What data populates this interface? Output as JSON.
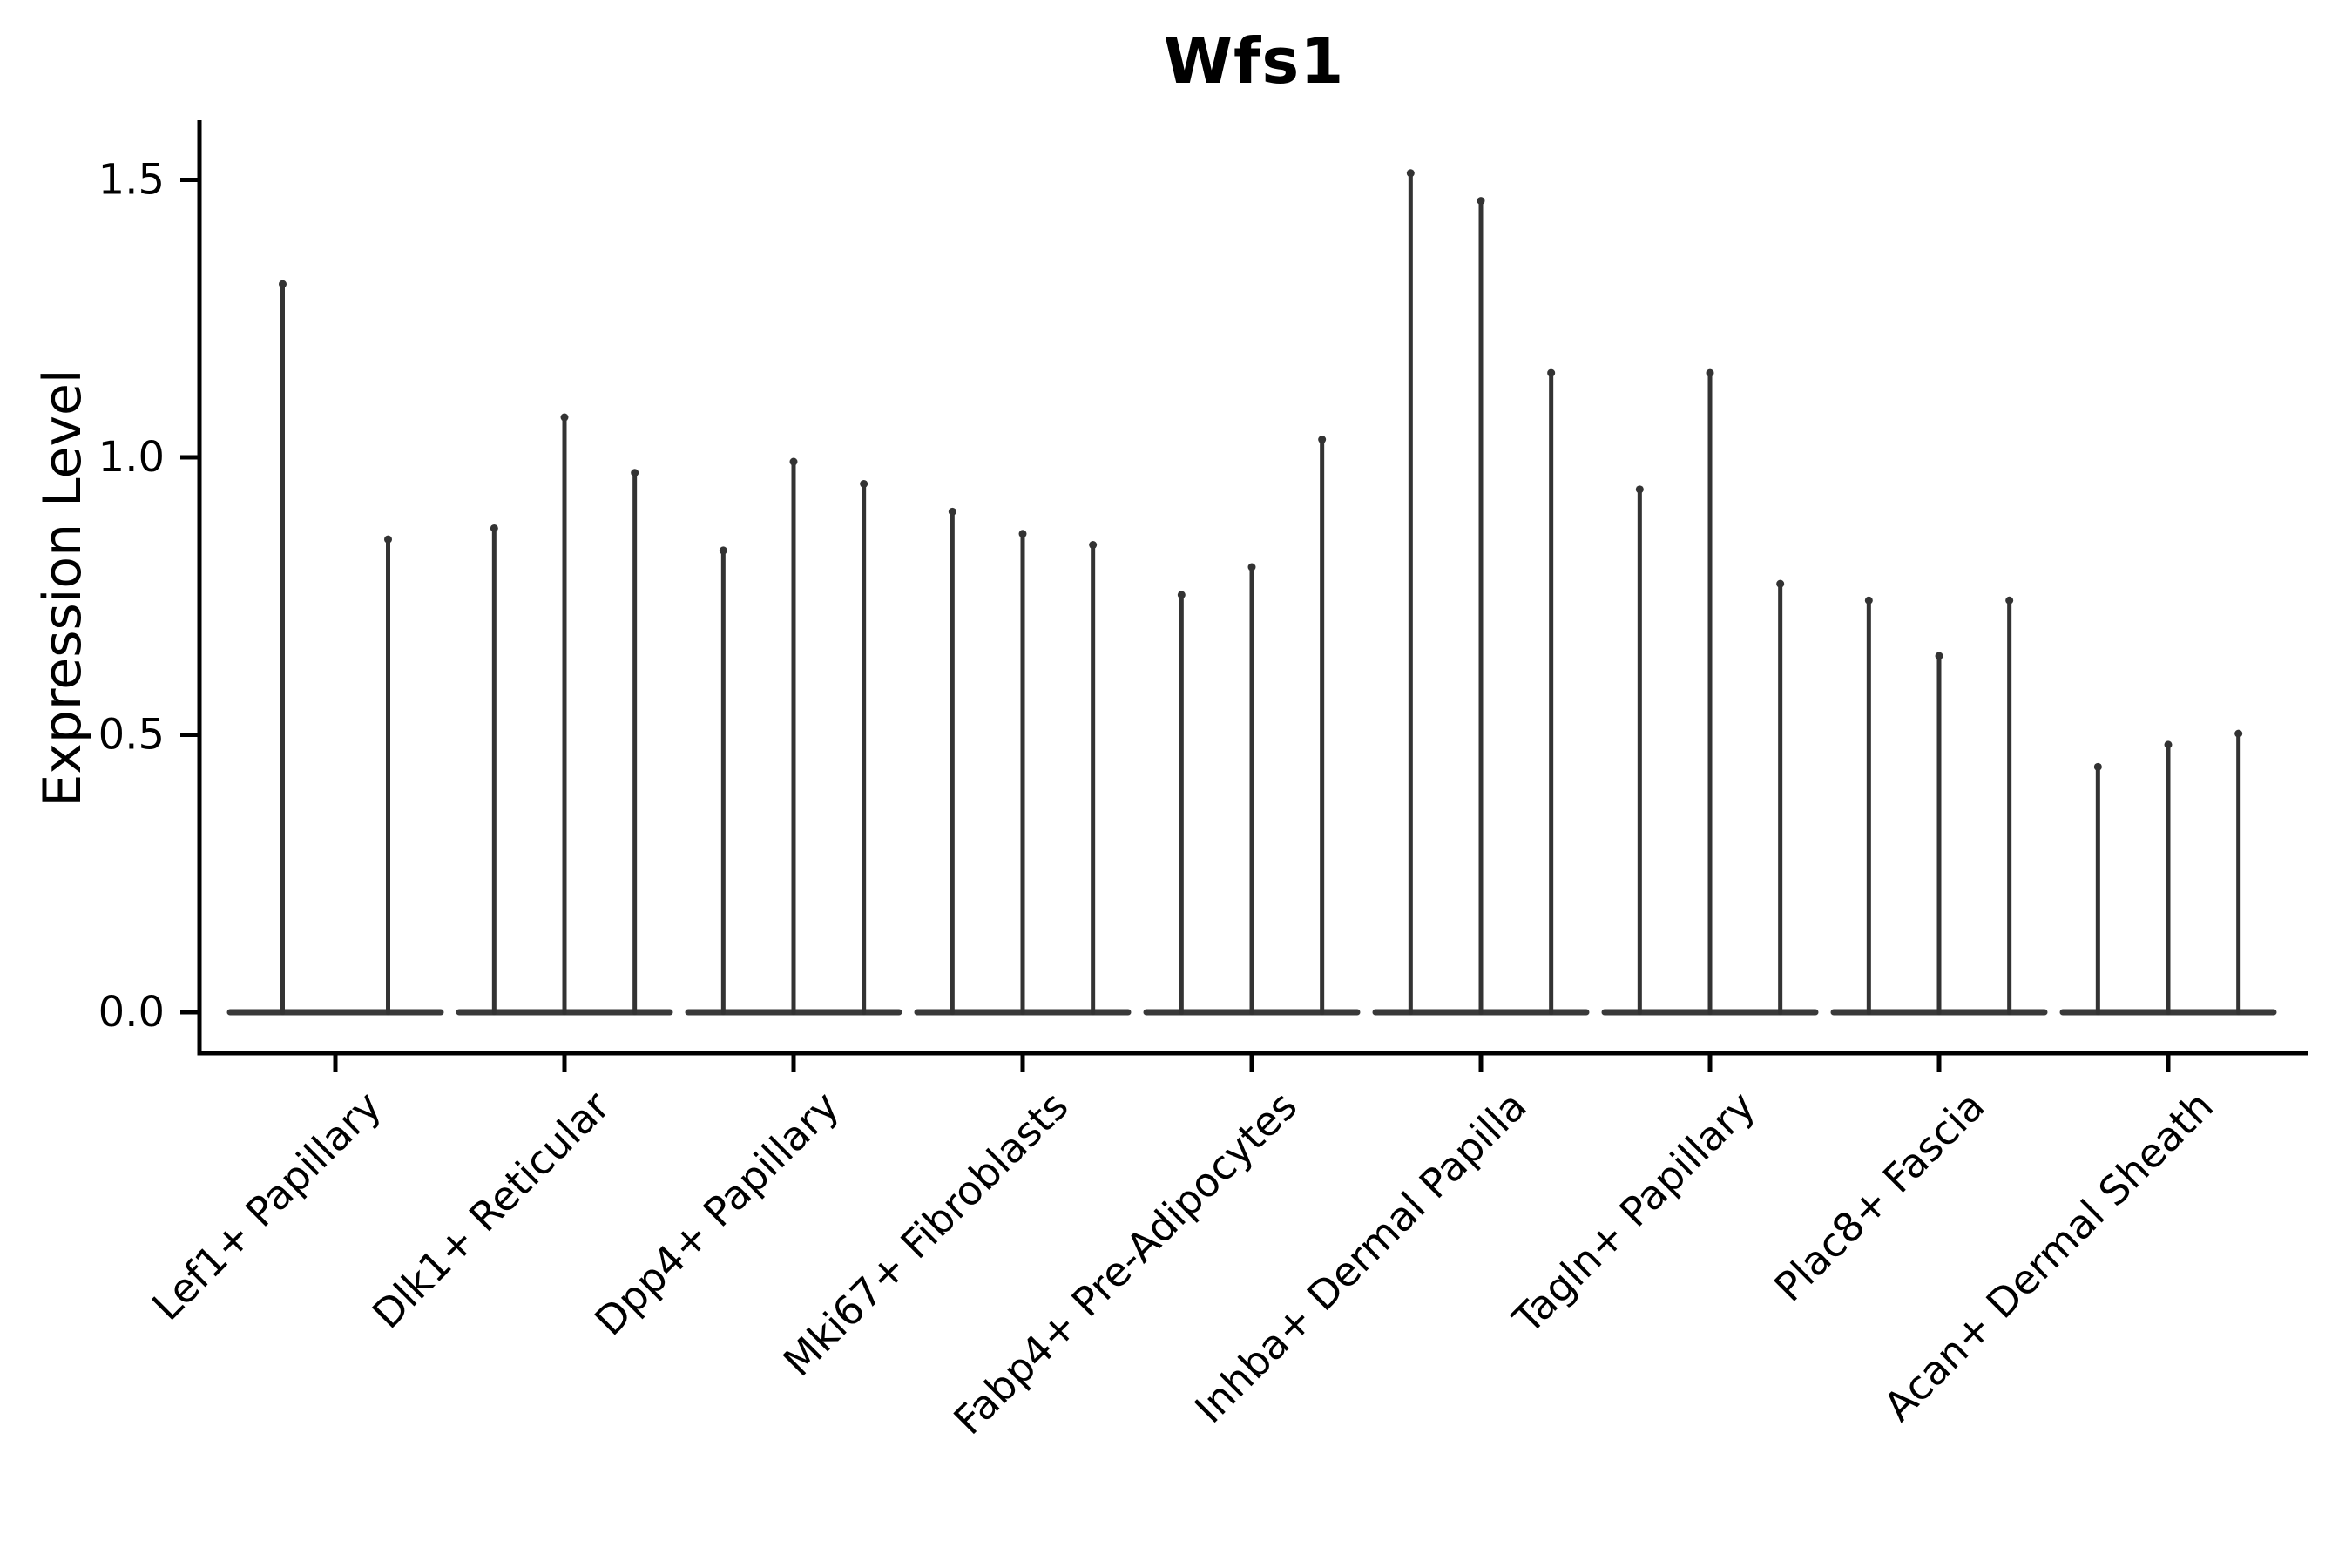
{
  "chart_data": {
    "type": "violin",
    "title": "Wfs1",
    "ylabel": "Expression Level",
    "xlabel": "",
    "ylim": [
      -0.07,
      1.6
    ],
    "grid": false,
    "legend": "none",
    "background_color": "#ffffff",
    "violin_color": "#333333",
    "axis_color": "#000000",
    "yticks": [
      {
        "label": "0.0",
        "value": 0.0
      },
      {
        "label": "0.5",
        "value": 0.5
      },
      {
        "label": "1.0",
        "value": 1.0
      },
      {
        "label": "1.5",
        "value": 1.5
      }
    ],
    "categories": [
      {
        "label": "Lef1+ Papillary",
        "violin_max_values": [
          1.32,
          0.86
        ]
      },
      {
        "label": "Dlk1+ Reticular",
        "violin_max_values": [
          0.88,
          1.08,
          0.98
        ]
      },
      {
        "label": "Dpp4+ Papillary",
        "violin_max_values": [
          0.84,
          1.0,
          0.96
        ]
      },
      {
        "label": "Mki67+ Fibroblasts",
        "violin_max_values": [
          0.91,
          0.87,
          0.85
        ]
      },
      {
        "label": "Fabp4+ Pre-Adipocytes",
        "violin_max_values": [
          0.76,
          0.81,
          1.04
        ]
      },
      {
        "label": "Inhba+ Dermal Papilla",
        "violin_max_values": [
          1.52,
          1.47,
          1.16
        ]
      },
      {
        "label": "Tagln+ Papillary",
        "violin_max_values": [
          0.95,
          1.16,
          0.78
        ]
      },
      {
        "label": "Plac8+ Fascia",
        "violin_max_values": [
          0.75,
          0.65,
          0.75
        ]
      },
      {
        "label": "Acan+ Dermal Sheath",
        "violin_max_values": [
          0.45,
          0.49,
          0.51
        ]
      }
    ]
  }
}
